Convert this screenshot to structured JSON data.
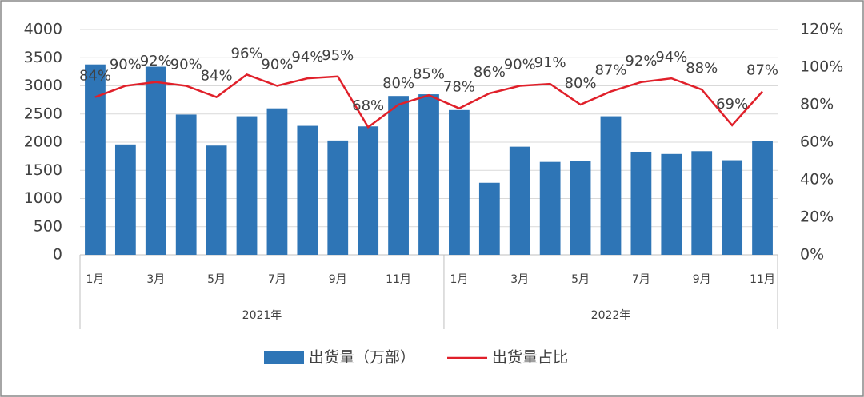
{
  "chart_data": {
    "type": "bar+line",
    "groups": [
      {
        "label": "2021年",
        "categories": [
          "1月",
          null,
          "3月",
          null,
          "5月",
          null,
          "7月",
          null,
          "9月",
          null,
          "11月",
          null
        ]
      },
      {
        "label": "2022年",
        "categories": [
          "1月",
          null,
          "3月",
          null,
          "5月",
          null,
          "7月",
          null,
          "9月",
          null,
          "11月"
        ]
      }
    ],
    "series": [
      {
        "name": "出货量（万部）",
        "type": "bar",
        "color": "#2e75b6",
        "values": [
          3380,
          1960,
          3340,
          2490,
          1940,
          2460,
          2600,
          2290,
          2030,
          2280,
          2820,
          2850,
          2570,
          1280,
          1920,
          1650,
          1660,
          2460,
          1830,
          1790,
          1840,
          1680,
          2020
        ]
      },
      {
        "name": "出货量占比",
        "type": "line",
        "color": "#e0202a",
        "axis": "y2",
        "values": [
          84,
          90,
          92,
          90,
          84,
          96,
          90,
          94,
          95,
          68,
          80,
          85,
          78,
          86,
          90,
          91,
          80,
          87,
          92,
          94,
          88,
          69,
          87
        ],
        "value_labels": [
          "84%",
          "90%",
          "92%",
          "90%",
          "84%",
          "96%",
          "90%",
          "94%",
          "95%",
          "68%",
          "80%",
          "85%",
          "78%",
          "86%",
          "90%",
          "91%",
          "80%",
          "87%",
          "92%",
          "94%",
          "88%",
          "69%",
          "87%"
        ]
      }
    ],
    "ylim": [
      0,
      4000
    ],
    "yticks": [
      0,
      500,
      1000,
      1500,
      2000,
      2500,
      3000,
      3500,
      4000
    ],
    "y2lim": [
      0,
      120
    ],
    "y2ticks": [
      {
        "value": 0,
        "label": "0%"
      },
      {
        "value": 20,
        "label": "20%"
      },
      {
        "value": 40,
        "label": "40%"
      },
      {
        "value": 60,
        "label": "60%"
      },
      {
        "value": 80,
        "label": "80%"
      },
      {
        "value": 100,
        "label": "100%"
      },
      {
        "value": 120,
        "label": "120%"
      }
    ],
    "grid": true,
    "legend": "bottom"
  }
}
